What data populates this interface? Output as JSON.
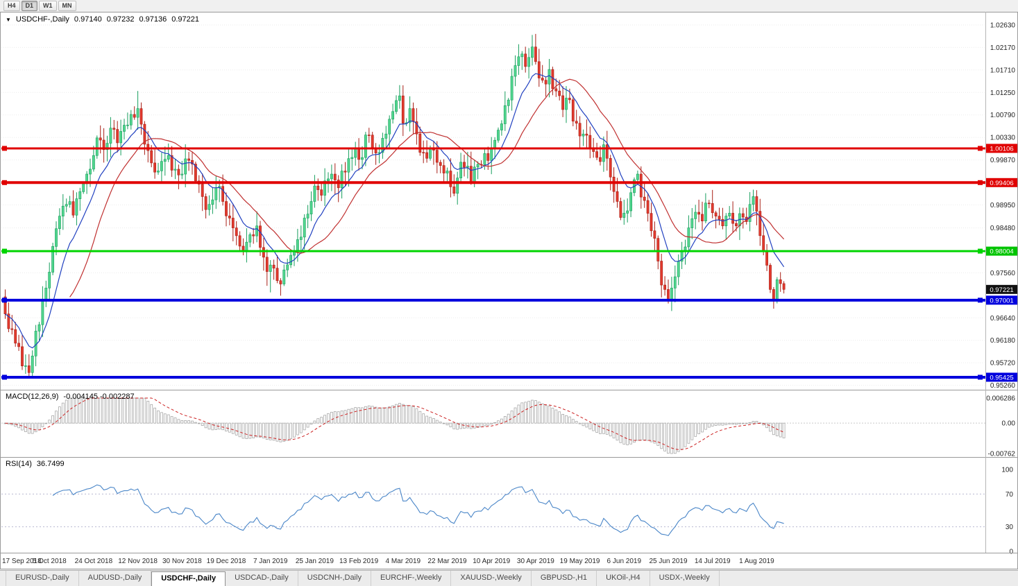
{
  "toolbar": {
    "timeframes": [
      {
        "label": "H4",
        "active": false
      },
      {
        "label": "D1",
        "active": true
      },
      {
        "label": "W1",
        "active": false
      },
      {
        "label": "MN",
        "active": false
      }
    ]
  },
  "chart": {
    "title": "USDCHF-,Daily",
    "ohlc": {
      "open": "0.97140",
      "high": "0.97232",
      "low": "0.97136",
      "close": "0.97221"
    }
  },
  "price_axis": {
    "ticks": [
      "1.02630",
      "1.02170",
      "1.01710",
      "1.01250",
      "1.00790",
      "1.00330",
      "0.99870",
      "0.98950",
      "0.98480",
      "0.97560",
      "0.96640",
      "0.96180",
      "0.95720",
      "0.95260"
    ],
    "badges": [
      {
        "value": "1.00106",
        "price": 1.00106,
        "color": "#e00000"
      },
      {
        "value": "0.99406",
        "price": 0.99406,
        "color": "#e00000"
      },
      {
        "value": "0.98004",
        "price": 0.98004,
        "color": "#00c400"
      },
      {
        "value": "0.97001",
        "price": 0.97001,
        "color": "#0000dd"
      },
      {
        "value": "0.95425",
        "price": 0.95425,
        "color": "#0000dd"
      }
    ],
    "current": {
      "value": "0.97221",
      "price": 0.97221,
      "color": "#111111"
    }
  },
  "hlines": [
    {
      "value": "1.00106",
      "price": 1.00106,
      "color": "#e00000",
      "width": 3
    },
    {
      "value": "0.99406",
      "price": 0.99406,
      "color": "#e00000",
      "width": 4
    },
    {
      "value": "0.98004",
      "price": 0.98004,
      "color": "#00d400",
      "width": 3
    },
    {
      "value": "0.97001",
      "price": 0.97001,
      "color": "#0000dd",
      "width": 4
    },
    {
      "value": "0.95425",
      "price": 0.95425,
      "color": "#0000dd",
      "width": 4
    }
  ],
  "macd": {
    "name": "MACD(12,26,9)",
    "values": "-0.004145 -0.002287",
    "axis": [
      "0.006286",
      "0.00",
      "-0.00762"
    ]
  },
  "rsi": {
    "name": "RSI(14)",
    "value": "36.7499",
    "axis": [
      "100",
      "70",
      "30",
      "0"
    ],
    "levels": [
      70,
      30
    ]
  },
  "date_axis": [
    "17 Sep 2018",
    "5 Oct 2018",
    "24 Oct 2018",
    "12 Nov 2018",
    "30 Nov 2018",
    "19 Dec 2018",
    "7 Jan 2019",
    "25 Jan 2019",
    "13 Feb 2019",
    "4 Mar 2019",
    "22 Mar 2019",
    "10 Apr 2019",
    "30 Apr 2019",
    "19 May 2019",
    "6 Jun 2019",
    "25 Jun 2019",
    "14 Jul 2019",
    "1 Aug 2019"
  ],
  "tabs": [
    {
      "label": "EURUSD-,Daily",
      "active": false
    },
    {
      "label": "AUDUSD-,Daily",
      "active": false
    },
    {
      "label": "USDCHF-,Daily",
      "active": true
    },
    {
      "label": "USDCAD-,Daily",
      "active": false
    },
    {
      "label": "USDCNH-,Daily",
      "active": false
    },
    {
      "label": "EURCHF-,Weekly",
      "active": false
    },
    {
      "label": "XAUUSD-,Weekly",
      "active": false
    },
    {
      "label": "GBPUSD-,H1",
      "active": false
    },
    {
      "label": "UKOil-,H4",
      "active": false
    },
    {
      "label": "USDX-,Weekly",
      "active": false
    }
  ],
  "colors": {
    "bull_fill": "#53d68f",
    "bull_stroke": "#179e5d",
    "bear_fill": "#e23a2e",
    "bear_stroke": "#a81f16",
    "ma_fast": "#2040c0",
    "ma_slow": "#c03030",
    "macd_hist_stroke": "#a8a8a8",
    "macd_signal": "#cc2222",
    "rsi_line": "#4a86c8",
    "grid": "#ebebeb"
  },
  "chart_data": {
    "type": "candlestick",
    "symbol": "USDCHF-",
    "timeframe": "Daily",
    "candle_count": 230,
    "dates_per_label": 13,
    "ylim": [
      0.9507,
      1.029
    ],
    "ma_fast_period": 10,
    "ma_slow_period": 20,
    "macd_params": [
      12,
      26,
      9
    ],
    "macd_range": [
      -0.00762,
      0.006286
    ],
    "rsi_period": 14,
    "price_anchors": [
      [
        0,
        0.9672
      ],
      [
        2,
        0.964
      ],
      [
        4,
        0.9605
      ],
      [
        6,
        0.9566
      ],
      [
        7,
        0.9552
      ],
      [
        8,
        0.9586
      ],
      [
        10,
        0.965
      ],
      [
        12,
        0.9725
      ],
      [
        14,
        0.981
      ],
      [
        16,
        0.9872
      ],
      [
        18,
        0.9896
      ],
      [
        20,
        0.9874
      ],
      [
        22,
        0.9922
      ],
      [
        24,
        0.9958
      ],
      [
        26,
        0.9996
      ],
      [
        27,
        1.0032
      ],
      [
        29,
        1.0008
      ],
      [
        31,
        1.0052
      ],
      [
        33,
        1.0022
      ],
      [
        35,
        1.0058
      ],
      [
        37,
        1.008
      ],
      [
        39,
        1.0092
      ],
      [
        40,
        1.006
      ],
      [
        42,
        1.0006
      ],
      [
        44,
        0.9962
      ],
      [
        46,
        0.9984
      ],
      [
        48,
        0.9996
      ],
      [
        50,
        0.9968
      ],
      [
        52,
        0.9958
      ],
      [
        54,
        0.9986
      ],
      [
        56,
        0.9944
      ],
      [
        58,
        0.9912
      ],
      [
        60,
        0.9896
      ],
      [
        62,
        0.993
      ],
      [
        64,
        0.9902
      ],
      [
        66,
        0.9868
      ],
      [
        68,
        0.9832
      ],
      [
        70,
        0.98
      ],
      [
        72,
        0.9834
      ],
      [
        74,
        0.9852
      ],
      [
        76,
        0.9788
      ],
      [
        78,
        0.9772
      ],
      [
        80,
        0.974
      ],
      [
        82,
        0.9762
      ],
      [
        84,
        0.9792
      ],
      [
        86,
        0.9824
      ],
      [
        88,
        0.9868
      ],
      [
        90,
        0.9902
      ],
      [
        92,
        0.9926
      ],
      [
        94,
        0.9944
      ],
      [
        96,
        0.9958
      ],
      [
        98,
        0.993
      ],
      [
        100,
        0.9962
      ],
      [
        102,
        0.9992
      ],
      [
        104,
        0.9988
      ],
      [
        106,
        1.0038
      ],
      [
        108,
        1.0012
      ],
      [
        110,
        1.0002
      ],
      [
        112,
        1.004
      ],
      [
        114,
        1.0086
      ],
      [
        116,
        1.0118
      ],
      [
        117,
        1.0062
      ],
      [
        119,
        1.0092
      ],
      [
        121,
        1.004
      ],
      [
        123,
        1.0002
      ],
      [
        125,
        1.0012
      ],
      [
        127,
        0.9982
      ],
      [
        129,
        0.996
      ],
      [
        131,
        0.9932
      ],
      [
        133,
        0.995
      ],
      [
        135,
        0.9972
      ],
      [
        137,
        0.9942
      ],
      [
        139,
        0.9978
      ],
      [
        141,
        1.0
      ],
      [
        143,
        1.0012
      ],
      [
        145,
        1.0048
      ],
      [
        147,
        1.0098
      ],
      [
        149,
        1.0158
      ],
      [
        151,
        1.0198
      ],
      [
        153,
        1.0178
      ],
      [
        155,
        1.0218
      ],
      [
        156,
        1.0188
      ],
      [
        158,
        1.015
      ],
      [
        160,
        1.0172
      ],
      [
        162,
        1.0128
      ],
      [
        164,
        1.009
      ],
      [
        166,
        1.011
      ],
      [
        168,
        1.0062
      ],
      [
        170,
        1.004
      ],
      [
        172,
        1.0012
      ],
      [
        174,
        0.9992
      ],
      [
        176,
        1.0018
      ],
      [
        178,
        0.9952
      ],
      [
        180,
        0.9902
      ],
      [
        182,
        0.9878
      ],
      [
        184,
        0.992
      ],
      [
        186,
        0.9958
      ],
      [
        188,
        0.9904
      ],
      [
        190,
        0.9842
      ],
      [
        192,
        0.978
      ],
      [
        194,
        0.9722
      ],
      [
        195,
        0.97
      ],
      [
        197,
        0.9748
      ],
      [
        199,
        0.98
      ],
      [
        201,
        0.9848
      ],
      [
        203,
        0.988
      ],
      [
        205,
        0.9862
      ],
      [
        207,
        0.9898
      ],
      [
        209,
        0.9872
      ],
      [
        211,
        0.9852
      ],
      [
        213,
        0.9878
      ],
      [
        215,
        0.9852
      ],
      [
        217,
        0.987
      ],
      [
        219,
        0.9896
      ],
      [
        220,
        0.9912
      ],
      [
        221,
        0.9882
      ],
      [
        223,
        0.98
      ],
      [
        225,
        0.9722
      ],
      [
        226,
        0.9702
      ],
      [
        227,
        0.9742
      ],
      [
        228,
        0.9734
      ],
      [
        229,
        0.97221
      ]
    ],
    "special_wicks": [
      {
        "i": 7,
        "low": 0.95425
      },
      {
        "i": 39,
        "high": 1.0128
      },
      {
        "i": 78,
        "low": 0.9716
      },
      {
        "i": 116,
        "high": 1.014
      },
      {
        "i": 155,
        "high": 1.0226
      },
      {
        "i": 195,
        "low": 0.96935
      },
      {
        "i": 226,
        "low": 0.9696
      }
    ]
  }
}
